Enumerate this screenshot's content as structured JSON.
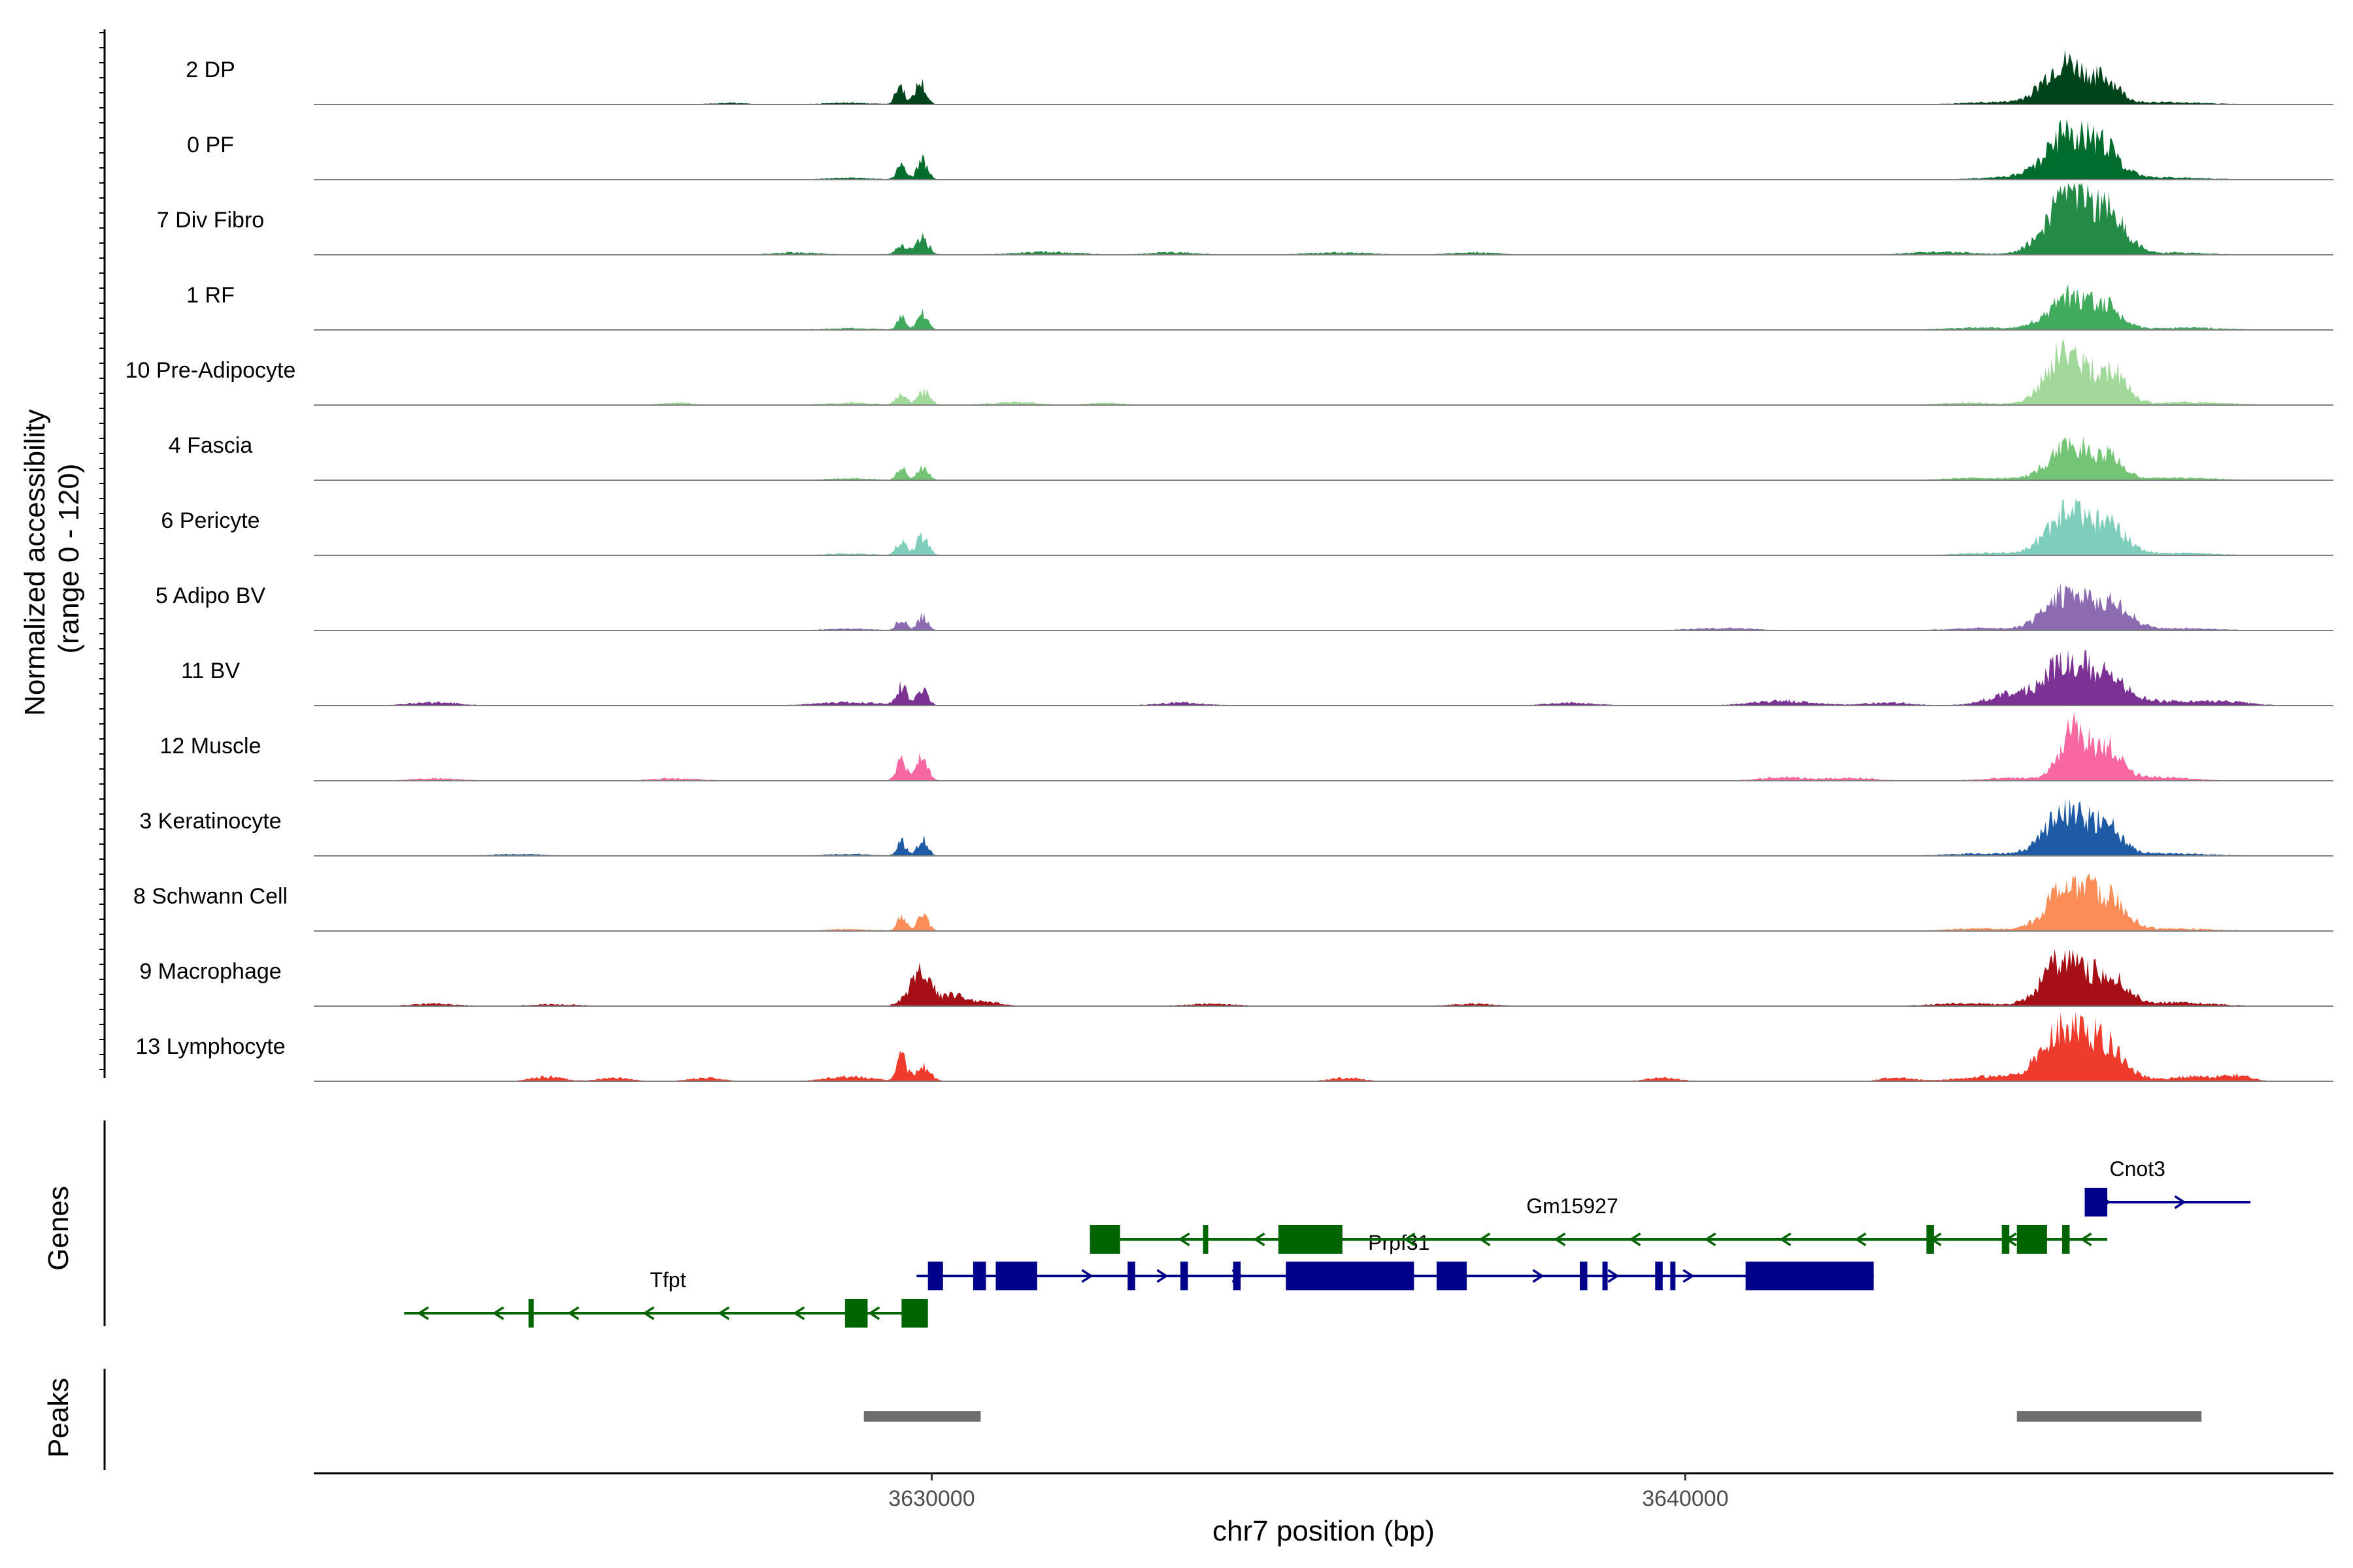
{
  "chart_data": {
    "type": "area",
    "title": "",
    "xlabel": "chr7 position (bp)",
    "ylabel": "Normalized accessibility\n(range 0 - 120)",
    "xlim": [
      3621800,
      3648600
    ],
    "ylim": [
      0,
      120
    ],
    "x_ticks": [
      3630000,
      3640000
    ],
    "x_tick_labels": [
      "3630000",
      "3640000"
    ],
    "panel_titles": {
      "genes": "Genes",
      "peaks": "Peaks"
    },
    "series": [
      {
        "name": "2 DP",
        "color": "#00441b",
        "peaks": [
          [
            3629580,
            35,
            60
          ],
          [
            3629850,
            40,
            70
          ],
          [
            3645050,
            75,
            280
          ],
          [
            3645600,
            35,
            180
          ]
        ],
        "noise": [
          [
            3627300,
            3,
            200
          ],
          [
            3628900,
            3,
            300
          ],
          [
            3644100,
            4,
            400
          ],
          [
            3646400,
            4,
            500
          ]
        ]
      },
      {
        "name": "0 PF",
        "color": "#006d2c",
        "peaks": [
          [
            3629600,
            30,
            60
          ],
          [
            3629880,
            35,
            70
          ],
          [
            3645100,
            85,
            300
          ],
          [
            3645600,
            40,
            200
          ]
        ],
        "noise": [
          [
            3628900,
            3,
            300
          ],
          [
            3644300,
            4,
            400
          ],
          [
            3646300,
            4,
            500
          ]
        ]
      },
      {
        "name": "7 Div Fibro",
        "color": "#238b45",
        "peaks": [
          [
            3629600,
            18,
            80
          ],
          [
            3629880,
            30,
            80
          ],
          [
            3645100,
            110,
            300
          ],
          [
            3645650,
            60,
            220
          ]
        ],
        "noise": [
          [
            3628200,
            4,
            300
          ],
          [
            3631500,
            5,
            400
          ],
          [
            3633200,
            4,
            300
          ],
          [
            3635400,
            4,
            400
          ],
          [
            3637200,
            4,
            300
          ],
          [
            3643400,
            5,
            400
          ],
          [
            3646500,
            4,
            400
          ]
        ]
      },
      {
        "name": "1 RF",
        "color": "#41ab5d",
        "peaks": [
          [
            3629600,
            22,
            60
          ],
          [
            3629880,
            28,
            70
          ],
          [
            3645100,
            60,
            280
          ],
          [
            3645600,
            35,
            200
          ]
        ],
        "noise": [
          [
            3628900,
            3,
            300
          ],
          [
            3643900,
            4,
            400
          ],
          [
            3646600,
            4,
            500
          ]
        ]
      },
      {
        "name": "10 Pre-Adipocyte",
        "color": "#a1d99b",
        "peaks": [
          [
            3629600,
            20,
            70
          ],
          [
            3629900,
            25,
            80
          ],
          [
            3645050,
            100,
            250
          ],
          [
            3645650,
            60,
            200
          ]
        ],
        "noise": [
          [
            3626600,
            4,
            200
          ],
          [
            3628900,
            4,
            300
          ],
          [
            3631100,
            5,
            300
          ],
          [
            3632300,
            4,
            200
          ],
          [
            3643800,
            4,
            400
          ],
          [
            3646700,
            5,
            500
          ]
        ]
      },
      {
        "name": "4 Fascia",
        "color": "#74c476",
        "peaks": [
          [
            3629600,
            22,
            60
          ],
          [
            3629880,
            24,
            70
          ],
          [
            3645100,
            60,
            280
          ],
          [
            3645600,
            35,
            200
          ]
        ],
        "noise": [
          [
            3628900,
            3,
            300
          ],
          [
            3643900,
            4,
            400
          ],
          [
            3646500,
            4,
            500
          ]
        ]
      },
      {
        "name": "6 Pericyte",
        "color": "#7fcdbb",
        "peaks": [
          [
            3629600,
            25,
            70
          ],
          [
            3629880,
            35,
            80
          ],
          [
            3645100,
            80,
            280
          ],
          [
            3645650,
            45,
            220
          ]
        ],
        "noise": [
          [
            3628900,
            3,
            300
          ],
          [
            3644000,
            4,
            400
          ],
          [
            3646500,
            4,
            500
          ]
        ]
      },
      {
        "name": "5 Adipo BV",
        "color": "#8c6bb1",
        "peaks": [
          [
            3629600,
            22,
            60
          ],
          [
            3629880,
            25,
            70
          ],
          [
            3645100,
            70,
            300
          ],
          [
            3645700,
            40,
            220
          ]
        ],
        "noise": [
          [
            3628900,
            3,
            300
          ],
          [
            3640500,
            4,
            400
          ],
          [
            3643900,
            4,
            400
          ],
          [
            3646500,
            4,
            500
          ]
        ]
      },
      {
        "name": "11 BV",
        "color": "#7b3294",
        "peaks": [
          [
            3629600,
            35,
            70
          ],
          [
            3629880,
            32,
            70
          ],
          [
            3645050,
            80,
            280
          ],
          [
            3645600,
            45,
            250
          ],
          [
            3644300,
            20,
            300
          ]
        ],
        "noise": [
          [
            3623400,
            6,
            300
          ],
          [
            3628900,
            6,
            400
          ],
          [
            3633300,
            5,
            300
          ],
          [
            3638500,
            5,
            300
          ],
          [
            3641300,
            8,
            400
          ],
          [
            3642700,
            5,
            300
          ],
          [
            3646300,
            8,
            500
          ],
          [
            3647200,
            6,
            300
          ]
        ]
      },
      {
        "name": "12 Muscle",
        "color": "#f768a1",
        "peaks": [
          [
            3629600,
            35,
            70
          ],
          [
            3629880,
            50,
            70
          ],
          [
            3645150,
            90,
            180
          ],
          [
            3645600,
            60,
            200
          ]
        ],
        "noise": [
          [
            3623400,
            4,
            300
          ],
          [
            3626600,
            4,
            300
          ],
          [
            3641300,
            6,
            300
          ],
          [
            3642200,
            5,
            300
          ],
          [
            3644400,
            5,
            400
          ],
          [
            3646300,
            6,
            400
          ]
        ]
      },
      {
        "name": "3 Keratinocyte",
        "color": "#1f5aa6",
        "peaks": [
          [
            3629600,
            25,
            60
          ],
          [
            3629880,
            30,
            70
          ],
          [
            3645050,
            80,
            280
          ],
          [
            3645600,
            50,
            200
          ]
        ],
        "noise": [
          [
            3624500,
            3,
            300
          ],
          [
            3628900,
            3,
            300
          ],
          [
            3643900,
            4,
            400
          ],
          [
            3646400,
            4,
            500
          ]
        ]
      },
      {
        "name": "8 Schwann Cell",
        "color": "#fc8d59",
        "peaks": [
          [
            3629600,
            25,
            60
          ],
          [
            3629880,
            30,
            70
          ],
          [
            3645100,
            85,
            280
          ],
          [
            3645650,
            50,
            220
          ]
        ],
        "noise": [
          [
            3628900,
            3,
            300
          ],
          [
            3643900,
            4,
            400
          ],
          [
            3646500,
            4,
            500
          ]
        ]
      },
      {
        "name": "9 Macrophage",
        "color": "#a50f15",
        "peaks": [
          [
            3629850,
            60,
            150
          ],
          [
            3630300,
            18,
            150
          ],
          [
            3645050,
            90,
            280
          ],
          [
            3645650,
            45,
            220
          ]
        ],
        "noise": [
          [
            3623400,
            4,
            300
          ],
          [
            3625000,
            3,
            300
          ],
          [
            3630700,
            8,
            200
          ],
          [
            3633700,
            4,
            300
          ],
          [
            3637200,
            4,
            300
          ],
          [
            3643700,
            5,
            400
          ],
          [
            3646500,
            6,
            500
          ]
        ]
      },
      {
        "name": "13 Lymphocyte",
        "color": "#ef3b2c",
        "peaks": [
          [
            3629600,
            45,
            60
          ],
          [
            3629880,
            25,
            100
          ],
          [
            3645050,
            95,
            300
          ],
          [
            3645600,
            55,
            250
          ]
        ],
        "noise": [
          [
            3624900,
            8,
            200
          ],
          [
            3625800,
            6,
            200
          ],
          [
            3627000,
            6,
            200
          ],
          [
            3628900,
            8,
            300
          ],
          [
            3635500,
            6,
            200
          ],
          [
            3639700,
            6,
            200
          ],
          [
            3642800,
            6,
            200
          ],
          [
            3644000,
            8,
            400
          ],
          [
            3646700,
            8,
            300
          ],
          [
            3647300,
            10,
            200
          ]
        ]
      }
    ],
    "genes": [
      {
        "name": "Tfpt",
        "strand": "-",
        "color": "#006400",
        "row": 3,
        "label_x": 3626500,
        "start": 3623000,
        "end": 3629900,
        "exons": [
          [
            3624650,
            3624720
          ],
          [
            3628850,
            3629150
          ],
          [
            3629600,
            3629950
          ]
        ],
        "utr": []
      },
      {
        "name": "Prpf31",
        "strand": "+",
        "color": "#00008b",
        "row": 2,
        "label_x": 3636200,
        "start": 3629800,
        "end": 3642500,
        "exons": [
          [
            3629950,
            3630150
          ],
          [
            3630550,
            3630720
          ],
          [
            3630850,
            3631400
          ],
          [
            3632600,
            3632700
          ],
          [
            3633300,
            3633400
          ],
          [
            3634000,
            3634100
          ],
          [
            3634700,
            3636400
          ],
          [
            3636700,
            3637100
          ],
          [
            3638600,
            3638700
          ],
          [
            3638900,
            3638950
          ],
          [
            3639600,
            3639700
          ],
          [
            3639800,
            3639850
          ],
          [
            3640800,
            3642500
          ]
        ],
        "utr": []
      },
      {
        "name": "Gm15927",
        "strand": "-",
        "color": "#006400",
        "row": 1,
        "label_x": 3638500,
        "start": 3632100,
        "end": 3645600,
        "exons": [
          [
            3632100,
            3632500
          ],
          [
            3633600,
            3633650
          ],
          [
            3634600,
            3635450
          ],
          [
            3643200,
            3643300
          ],
          [
            3644200,
            3644300
          ],
          [
            3644400,
            3644800
          ],
          [
            3645000,
            3645100
          ]
        ],
        "utr": []
      },
      {
        "name": "Cnot3",
        "strand": "+",
        "color": "#00008b",
        "row": 0,
        "label_x": 3646000,
        "start": 3645300,
        "end": 3647500,
        "exons": [
          [
            3645300,
            3645600
          ]
        ],
        "utr": []
      }
    ],
    "peaks": [
      [
        3629100,
        3630650
      ],
      [
        3644400,
        3646850
      ]
    ],
    "grid": false,
    "legend": "none"
  }
}
